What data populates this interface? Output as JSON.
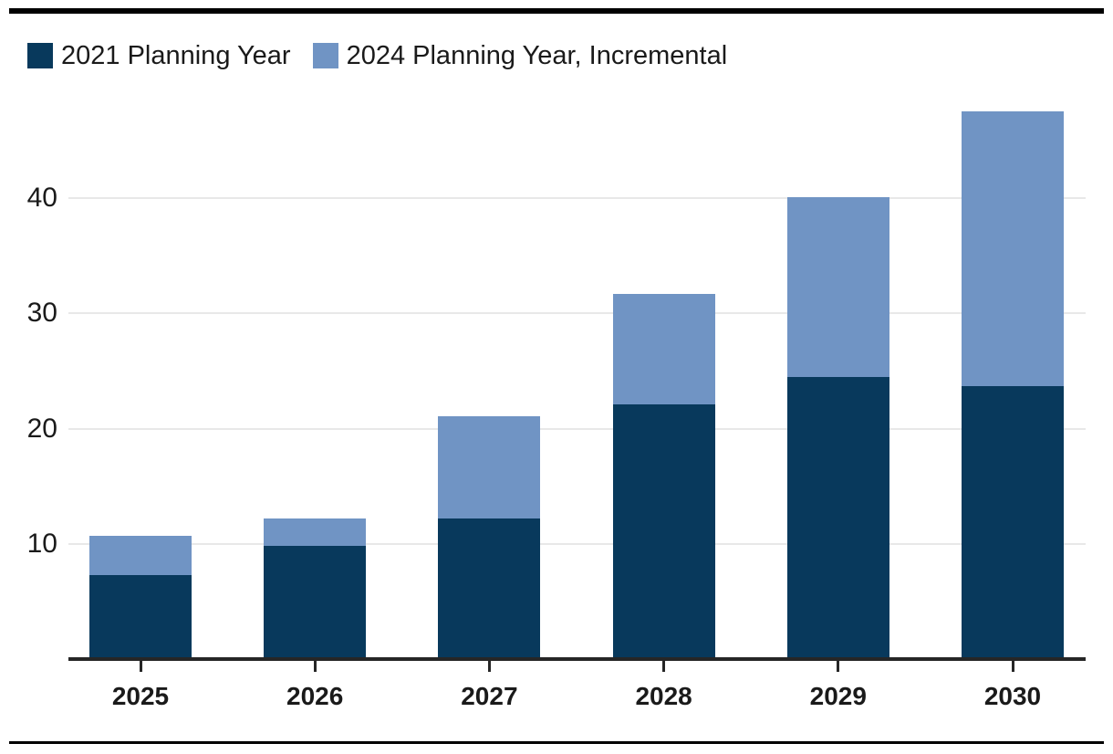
{
  "chart_data": {
    "type": "bar",
    "stacked": true,
    "title": "",
    "xlabel": "",
    "ylabel": "",
    "categories": [
      "2025",
      "2026",
      "2027",
      "2028",
      "2029",
      "2030"
    ],
    "series": [
      {
        "name": "2021 Planning Year",
        "color": "#08395c",
        "values": [
          7.3,
          9.8,
          12.2,
          22.1,
          24.5,
          23.7
        ]
      },
      {
        "name": "2024 Planning Year, Incremental",
        "color": "#7094c4",
        "values": [
          3.4,
          2.4,
          8.9,
          9.6,
          15.6,
          23.8
        ]
      }
    ],
    "stack_totals": [
      10.7,
      12.2,
      21.1,
      31.7,
      40.1,
      47.5
    ],
    "y_ticks": [
      10,
      20,
      30,
      40
    ],
    "ylim": [
      0,
      48.5
    ],
    "grid": "horizontal-only",
    "legend_position": "top-left"
  },
  "colors": {
    "background": "#ffffff",
    "rule": "#000000",
    "axis": "#262626",
    "grid": "#e8e8e8",
    "text": "#1a1a1a"
  }
}
